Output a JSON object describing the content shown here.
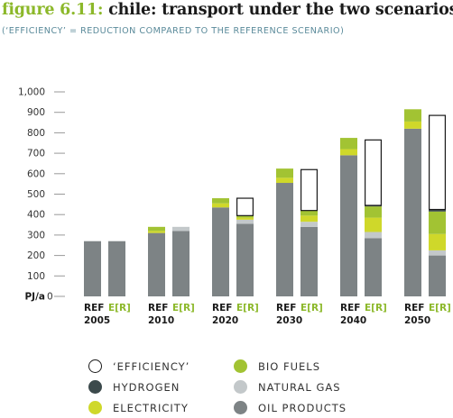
{
  "header": {
    "figure_label": "figure 6.11:",
    "title": "chile: transport under the two scenarios",
    "subtitle": "(‘EFFICIENCY’ = REDUCTION COMPARED TO THE REFERENCE SCENARIO)"
  },
  "colors": {
    "oil_products": "#7d8385",
    "natural_gas": "#c3c8ca",
    "bio_fuels": "#a2c333",
    "electricity": "#cfd82a",
    "hydrogen": "#3c4a4c",
    "efficiency": "#ffffff",
    "ref_label": "#1a1a1a",
    "er_label": "#8cb82a"
  },
  "chart_data": {
    "type": "bar",
    "stacked": true,
    "ylabel": "PJ/a",
    "ylim": [
      0,
      1000
    ],
    "yticks": [
      0,
      100,
      200,
      300,
      400,
      500,
      600,
      700,
      800,
      900,
      1000
    ],
    "ytick_labels": [
      "0",
      "100",
      "200",
      "300",
      "400",
      "500",
      "600",
      "700",
      "800",
      "900",
      "1,000"
    ],
    "grid": false,
    "legend_placement": "bottom",
    "scenario_labels": [
      "REF",
      "E[R]"
    ],
    "categories": [
      "2005",
      "2010",
      "2020",
      "2030",
      "2040",
      "2050"
    ],
    "series": [
      {
        "name": "OIL PRODUCTS",
        "key": "oil_products",
        "REF": [
          270,
          310,
          435,
          555,
          690,
          820
        ],
        "E[R]": [
          270,
          320,
          355,
          340,
          285,
          200
        ]
      },
      {
        "name": "NATURAL GAS",
        "key": "natural_gas",
        "REF": [
          0,
          0,
          0,
          0,
          0,
          0
        ],
        "E[R]": [
          0,
          20,
          20,
          25,
          30,
          25
        ]
      },
      {
        "name": "ELECTRICITY",
        "key": "electricity",
        "REF": [
          0,
          10,
          20,
          25,
          30,
          35
        ],
        "E[R]": [
          0,
          0,
          10,
          30,
          70,
          80
        ]
      },
      {
        "name": "BIO FUELS",
        "key": "bio_fuels",
        "REF": [
          0,
          20,
          25,
          45,
          55,
          60
        ],
        "E[R]": [
          0,
          0,
          10,
          25,
          55,
          110
        ]
      },
      {
        "name": "HYDROGEN",
        "key": "hydrogen",
        "REF": [
          0,
          0,
          0,
          0,
          0,
          0
        ],
        "E[R]": [
          0,
          0,
          0,
          0,
          5,
          10
        ]
      },
      {
        "name": "‘EFFICIENCY’",
        "key": "efficiency",
        "REF": [
          0,
          0,
          0,
          0,
          0,
          0
        ],
        "E[R]": [
          0,
          0,
          85,
          200,
          320,
          460
        ]
      }
    ]
  },
  "legend": {
    "items": [
      {
        "key": "efficiency",
        "label": "‘EFFICIENCY’"
      },
      {
        "key": "bio_fuels",
        "label": "BIO FUELS"
      },
      {
        "key": "hydrogen",
        "label": "HYDROGEN"
      },
      {
        "key": "natural_gas",
        "label": "NATURAL GAS"
      },
      {
        "key": "electricity",
        "label": "ELECTRICITY"
      },
      {
        "key": "oil_products",
        "label": "OIL PRODUCTS"
      }
    ]
  }
}
